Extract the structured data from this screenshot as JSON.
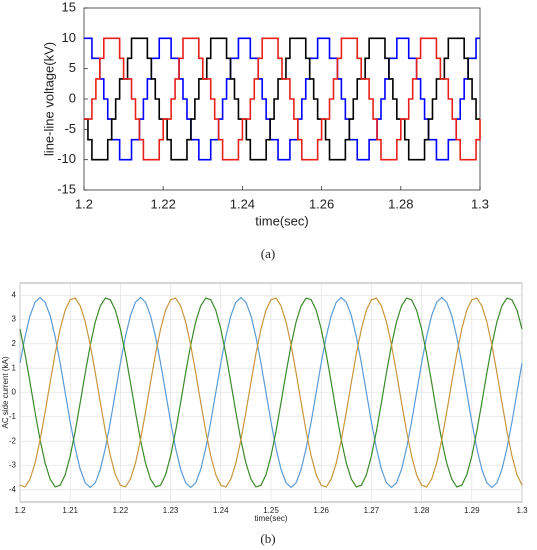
{
  "chart_data": [
    {
      "type": "line",
      "step": true,
      "caption": "(a)",
      "xlabel": "time(sec)",
      "ylabel": "line-line voltage(kV)",
      "xlim": [
        1.2,
        1.3
      ],
      "xticks": [
        1.2,
        1.22,
        1.24,
        1.26,
        1.28,
        1.3
      ],
      "ylim": [
        -15,
        15
      ],
      "yticks": [
        -15,
        -10,
        -5,
        0,
        5,
        10,
        15
      ],
      "grid": false,
      "x": [
        1.2,
        1.201,
        1.202,
        1.203,
        1.204,
        1.205,
        1.206,
        1.207,
        1.208,
        1.209,
        1.21,
        1.211,
        1.212,
        1.213,
        1.214,
        1.215,
        1.216,
        1.217,
        1.218,
        1.219,
        1.22,
        1.221,
        1.222,
        1.223,
        1.224,
        1.225,
        1.226,
        1.227,
        1.228,
        1.229,
        1.23,
        1.231,
        1.232,
        1.233,
        1.234,
        1.235,
        1.236,
        1.237,
        1.238,
        1.239,
        1.24,
        1.241,
        1.242,
        1.243,
        1.244,
        1.245,
        1.246,
        1.247,
        1.248,
        1.249,
        1.25,
        1.251,
        1.252,
        1.253,
        1.254,
        1.255,
        1.256,
        1.257,
        1.258,
        1.259,
        1.26,
        1.261,
        1.262,
        1.263,
        1.264,
        1.265,
        1.266,
        1.267,
        1.268,
        1.269,
        1.27,
        1.271,
        1.272,
        1.273,
        1.274,
        1.275,
        1.276,
        1.277,
        1.278,
        1.279,
        1.28,
        1.281,
        1.282,
        1.283,
        1.284,
        1.285,
        1.286,
        1.287,
        1.288,
        1.289,
        1.29,
        1.291,
        1.292,
        1.293,
        1.294,
        1.295,
        1.296,
        1.297,
        1.298,
        1.299,
        1.3
      ],
      "series": [
        {
          "color": "#0000ff",
          "values": [
            10,
            10,
            6.7,
            6.7,
            3.3,
            0,
            -3.3,
            -6.7,
            -6.7,
            -10,
            -10,
            -10,
            -6.7,
            -6.7,
            -3.3,
            0,
            3.3,
            6.7,
            6.7,
            10,
            10,
            10,
            6.7,
            6.7,
            3.3,
            0,
            -3.3,
            -6.7,
            -6.7,
            -10,
            -10,
            -10,
            -6.7,
            -6.7,
            -3.3,
            0,
            3.3,
            6.7,
            6.7,
            10,
            10,
            10,
            6.7,
            6.7,
            3.3,
            0,
            -3.3,
            -6.7,
            -6.7,
            -10,
            -10,
            -10,
            -6.7,
            -6.7,
            -3.3,
            0,
            3.3,
            6.7,
            6.7,
            10,
            10,
            10,
            6.7,
            6.7,
            3.3,
            0,
            -3.3,
            -6.7,
            -6.7,
            -10,
            -10,
            -10,
            -6.7,
            -6.7,
            -3.3,
            0,
            3.3,
            6.7,
            6.7,
            10,
            10,
            10,
            6.7,
            6.7,
            3.3,
            0,
            -3.3,
            -6.7,
            -6.7,
            -10,
            -10,
            -10,
            -6.7,
            -6.7,
            -3.3,
            0,
            3.3,
            6.7,
            6.7,
            10,
            10
          ]
        },
        {
          "color": "#000000",
          "values": [
            -3.3,
            -6.7,
            -10,
            -10,
            -10,
            -10,
            -6.7,
            -3.3,
            0,
            3.3,
            3.3,
            6.7,
            10,
            10,
            10,
            10,
            6.7,
            3.3,
            0,
            -3.3,
            -3.3,
            -6.7,
            -10,
            -10,
            -10,
            -10,
            -6.7,
            -3.3,
            0,
            3.3,
            3.3,
            6.7,
            10,
            10,
            10,
            10,
            6.7,
            3.3,
            0,
            -3.3,
            -3.3,
            -6.7,
            -10,
            -10,
            -10,
            -10,
            -6.7,
            -3.3,
            0,
            3.3,
            3.3,
            6.7,
            10,
            10,
            10,
            10,
            6.7,
            3.3,
            0,
            -3.3,
            -3.3,
            -6.7,
            -10,
            -10,
            -10,
            -10,
            -6.7,
            -3.3,
            0,
            3.3,
            3.3,
            6.7,
            10,
            10,
            10,
            10,
            6.7,
            3.3,
            0,
            -3.3,
            -3.3,
            -6.7,
            -10,
            -10,
            -10,
            -10,
            -6.7,
            -3.3,
            0,
            3.3,
            3.3,
            6.7,
            10,
            10,
            10,
            10,
            6.7,
            3.3,
            0,
            -3.3,
            -3.3
          ]
        },
        {
          "color": "#e8201a",
          "values": [
            -3.3,
            -3.3,
            0,
            3.3,
            6.7,
            10,
            10,
            10,
            10,
            6.7,
            3.3,
            3.3,
            0,
            -3.3,
            -6.7,
            -10,
            -10,
            -10,
            -10,
            -6.7,
            -3.3,
            -3.3,
            0,
            3.3,
            6.7,
            10,
            10,
            10,
            10,
            6.7,
            3.3,
            3.3,
            0,
            -3.3,
            -6.7,
            -10,
            -10,
            -10,
            -10,
            -6.7,
            -3.3,
            -3.3,
            0,
            3.3,
            6.7,
            10,
            10,
            10,
            10,
            6.7,
            3.3,
            3.3,
            0,
            -3.3,
            -6.7,
            -10,
            -10,
            -10,
            -10,
            -6.7,
            -3.3,
            -3.3,
            0,
            3.3,
            6.7,
            10,
            10,
            10,
            10,
            6.7,
            3.3,
            3.3,
            0,
            -3.3,
            -6.7,
            -10,
            -10,
            -10,
            -10,
            -6.7,
            -3.3,
            -3.3,
            0,
            3.3,
            6.7,
            10,
            10,
            10,
            10,
            6.7,
            3.3,
            3.3,
            0,
            -3.3,
            -6.7,
            -10,
            -10,
            -10,
            -10,
            -6.7,
            -3.3
          ]
        }
      ]
    },
    {
      "type": "line",
      "caption": "(b)",
      "xlabel": "time(sec)",
      "ylabel": "AC side current (kA)",
      "xlim": [
        1.2,
        1.3
      ],
      "xticks": [
        1.2,
        1.21,
        1.22,
        1.23,
        1.24,
        1.25,
        1.26,
        1.27,
        1.28,
        1.29,
        1.3
      ],
      "ylim": [
        -4.5,
        4.5
      ],
      "yticks": [
        -4,
        -3,
        -2,
        -1,
        0,
        1,
        2,
        3,
        4
      ],
      "grid": true,
      "x": [
        1.2,
        1.201,
        1.202,
        1.203,
        1.204,
        1.205,
        1.206,
        1.207,
        1.208,
        1.209,
        1.21,
        1.211,
        1.212,
        1.213,
        1.214,
        1.215,
        1.216,
        1.217,
        1.218,
        1.219,
        1.22,
        1.221,
        1.222,
        1.223,
        1.224,
        1.225,
        1.226,
        1.227,
        1.228,
        1.229,
        1.23,
        1.231,
        1.232,
        1.233,
        1.234,
        1.235,
        1.236,
        1.237,
        1.238,
        1.239,
        1.24,
        1.241,
        1.242,
        1.243,
        1.244,
        1.245,
        1.246,
        1.247,
        1.248,
        1.249,
        1.25,
        1.251,
        1.252,
        1.253,
        1.254,
        1.255,
        1.256,
        1.257,
        1.258,
        1.259,
        1.26,
        1.261,
        1.262,
        1.263,
        1.264,
        1.265,
        1.266,
        1.267,
        1.268,
        1.269,
        1.27,
        1.271,
        1.272,
        1.273,
        1.274,
        1.275,
        1.276,
        1.277,
        1.278,
        1.279,
        1.28,
        1.281,
        1.282,
        1.283,
        1.284,
        1.285,
        1.286,
        1.287,
        1.288,
        1.289,
        1.29,
        1.291,
        1.292,
        1.293,
        1.294,
        1.295,
        1.296,
        1.297,
        1.298,
        1.299,
        1.3
      ],
      "series": [
        {
          "color": "#5b9bd5",
          "values": [
            1.21,
            2.29,
            3.16,
            3.71,
            3.9,
            3.71,
            3.16,
            2.29,
            1.21,
            0,
            -1.21,
            -2.29,
            -3.16,
            -3.71,
            -3.9,
            -3.71,
            -3.16,
            -2.29,
            -1.21,
            0,
            1.21,
            2.29,
            3.16,
            3.71,
            3.9,
            3.71,
            3.16,
            2.29,
            1.21,
            0,
            -1.21,
            -2.29,
            -3.16,
            -3.71,
            -3.9,
            -3.71,
            -3.16,
            -2.29,
            -1.21,
            0,
            1.21,
            2.29,
            3.16,
            3.71,
            3.9,
            3.71,
            3.16,
            2.29,
            1.21,
            0,
            -1.21,
            -2.29,
            -3.16,
            -3.71,
            -3.9,
            -3.71,
            -3.16,
            -2.29,
            -1.21,
            0,
            1.21,
            2.29,
            3.16,
            3.71,
            3.9,
            3.71,
            3.16,
            2.29,
            1.21,
            0,
            -1.21,
            -2.29,
            -3.16,
            -3.71,
            -3.9,
            -3.71,
            -3.16,
            -2.29,
            -1.21,
            0,
            1.21,
            2.29,
            3.16,
            3.71,
            3.9,
            3.71,
            3.16,
            2.29,
            1.21,
            0,
            -1.21,
            -2.29,
            -3.16,
            -3.71,
            -3.9,
            -3.71,
            -3.16,
            -2.29,
            -1.21,
            0,
            1.21
          ]
        },
        {
          "color": "#3a8a2a",
          "values": [
            2.61,
            1.59,
            0.41,
            -0.81,
            -1.95,
            -2.9,
            -3.56,
            -3.88,
            -3.81,
            -3.38,
            -2.61,
            -1.59,
            -0.41,
            0.81,
            1.95,
            2.9,
            3.56,
            3.88,
            3.81,
            3.38,
            2.61,
            1.59,
            0.41,
            -0.81,
            -1.95,
            -2.9,
            -3.56,
            -3.88,
            -3.81,
            -3.38,
            -2.61,
            -1.59,
            -0.41,
            0.81,
            1.95,
            2.9,
            3.56,
            3.88,
            3.81,
            3.38,
            2.61,
            1.59,
            0.41,
            -0.81,
            -1.95,
            -2.9,
            -3.56,
            -3.88,
            -3.81,
            -3.38,
            -2.61,
            -1.59,
            -0.41,
            0.81,
            1.95,
            2.9,
            3.56,
            3.88,
            3.81,
            3.38,
            2.61,
            1.59,
            0.41,
            -0.81,
            -1.95,
            -2.9,
            -3.56,
            -3.88,
            -3.81,
            -3.38,
            -2.61,
            -1.59,
            -0.41,
            0.81,
            1.95,
            2.9,
            3.56,
            3.88,
            3.81,
            3.38,
            2.61,
            1.59,
            0.41,
            -0.81,
            -1.95,
            -2.9,
            -3.56,
            -3.88,
            -3.81,
            -3.38,
            -2.61,
            -1.59,
            -0.41,
            0.81,
            1.95,
            2.9,
            3.56,
            3.88,
            3.81,
            3.38,
            2.61
          ]
        },
        {
          "color": "#c8963e",
          "values": [
            -3.81,
            -3.88,
            -3.56,
            -2.9,
            -1.95,
            -0.81,
            0.41,
            1.59,
            2.61,
            3.38,
            3.81,
            3.88,
            3.56,
            2.9,
            1.95,
            0.81,
            -0.41,
            -1.59,
            -2.61,
            -3.38,
            -3.81,
            -3.88,
            -3.56,
            -2.9,
            -1.95,
            -0.81,
            0.41,
            1.59,
            2.61,
            3.38,
            3.81,
            3.88,
            3.56,
            2.9,
            1.95,
            0.81,
            -0.41,
            -1.59,
            -2.61,
            -3.38,
            -3.81,
            -3.88,
            -3.56,
            -2.9,
            -1.95,
            -0.81,
            0.41,
            1.59,
            2.61,
            3.38,
            3.81,
            3.88,
            3.56,
            2.9,
            1.95,
            0.81,
            -0.41,
            -1.59,
            -2.61,
            -3.38,
            -3.81,
            -3.88,
            -3.56,
            -2.9,
            -1.95,
            -0.81,
            0.41,
            1.59,
            2.61,
            3.38,
            3.81,
            3.88,
            3.56,
            2.9,
            1.95,
            0.81,
            -0.41,
            -1.59,
            -2.61,
            -3.38,
            -3.81,
            -3.88,
            -3.56,
            -2.9,
            -1.95,
            -0.81,
            0.41,
            1.59,
            2.61,
            3.38,
            3.81,
            3.88,
            3.56,
            2.9,
            1.95,
            0.81,
            -0.41,
            -1.59,
            -2.61,
            -3.38,
            -3.81
          ]
        }
      ]
    }
  ]
}
